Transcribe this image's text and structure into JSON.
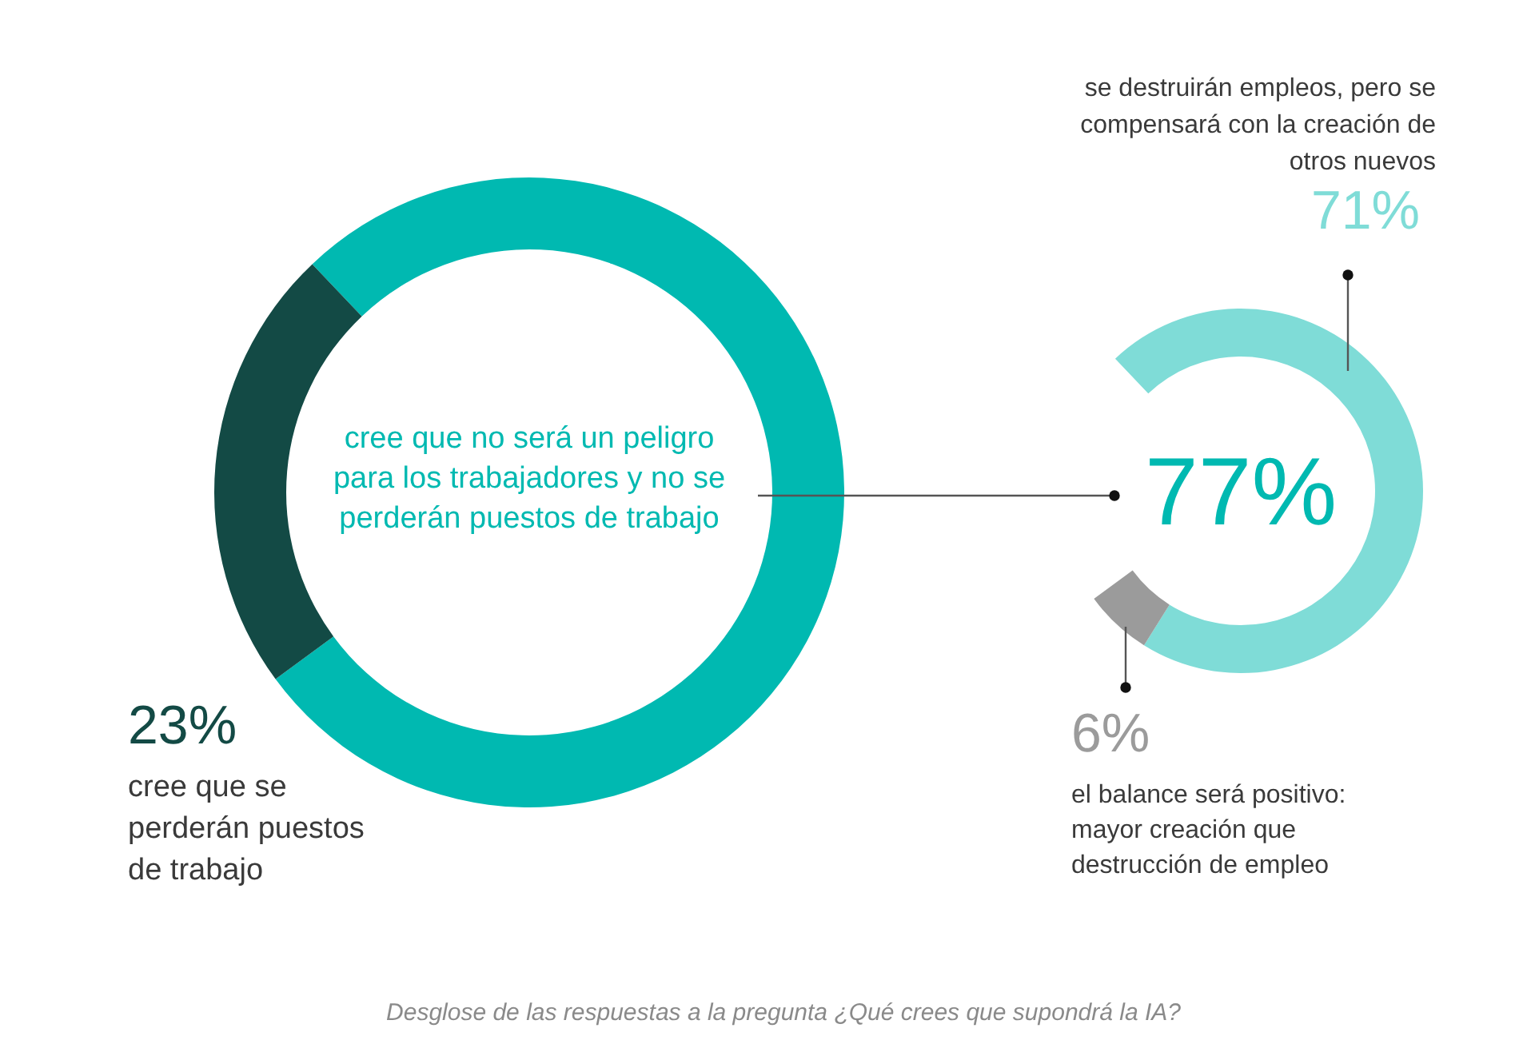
{
  "chart_data": [
    {
      "type": "donut",
      "categories": [
        "cree que no será un peligro para los trabajadores y no se perderán puestos de trabajo",
        "cree que se perderán puestos de trabajo"
      ],
      "values": [
        77,
        23
      ],
      "colors": [
        "#00b9b1",
        "#134a45"
      ],
      "value_labels": [
        "77%",
        "23%"
      ],
      "annotations": [
        "Desglose de las respuestas a la pregunta ¿Qué crees que supondrá la IA?"
      ]
    },
    {
      "type": "donut",
      "categories": [
        "se destruirán empleos, pero se compensará con la creación de otros nuevos",
        "el balance será positivo: mayor creación que destrucción de empleo"
      ],
      "values": [
        71,
        6
      ],
      "colors": [
        "#7fdcd7",
        "#9b9b9b"
      ],
      "value_labels": [
        "71%",
        "6%"
      ]
    }
  ]
}
